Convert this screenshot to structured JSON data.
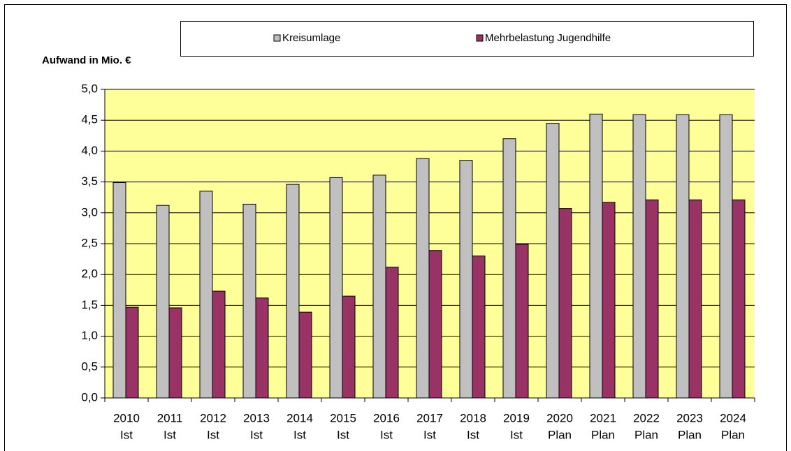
{
  "chart_data": {
    "type": "bar",
    "y_axis_label": "Aufwand in Mio. €",
    "categories": [
      [
        "2010",
        "Ist"
      ],
      [
        "2011",
        "Ist"
      ],
      [
        "2012",
        "Ist"
      ],
      [
        "2013",
        "Ist"
      ],
      [
        "2014",
        "Ist"
      ],
      [
        "2015",
        "Ist"
      ],
      [
        "2016",
        "Ist"
      ],
      [
        "2017",
        "Ist"
      ],
      [
        "2018",
        "Ist"
      ],
      [
        "2019",
        "Ist"
      ],
      [
        "2020",
        "Plan"
      ],
      [
        "2021",
        "Plan"
      ],
      [
        "2022",
        "Plan"
      ],
      [
        "2023",
        "Plan"
      ],
      [
        "2024",
        "Plan"
      ]
    ],
    "series": [
      {
        "name": "Kreisumlage",
        "color": "#c0c0c0",
        "values": [
          3.49,
          3.12,
          3.35,
          3.14,
          3.46,
          3.57,
          3.61,
          3.88,
          3.85,
          4.2,
          4.45,
          4.6,
          4.59,
          4.59,
          4.59
        ]
      },
      {
        "name": "Mehrbelastung Jugendhilfe",
        "color": "#993366",
        "values": [
          1.47,
          1.46,
          1.73,
          1.62,
          1.39,
          1.65,
          2.12,
          2.39,
          2.3,
          2.49,
          3.07,
          3.17,
          3.21,
          3.21,
          3.21
        ]
      }
    ],
    "ylim": [
      0,
      5
    ],
    "yticks": [
      {
        "value": 0,
        "label": "0,0"
      },
      {
        "value": 0.5,
        "label": "0,5"
      },
      {
        "value": 1,
        "label": "1,0"
      },
      {
        "value": 1.5,
        "label": "1,5"
      },
      {
        "value": 2,
        "label": "2,0"
      },
      {
        "value": 2.5,
        "label": "2,5"
      },
      {
        "value": 3,
        "label": "3,0"
      },
      {
        "value": 3.5,
        "label": "3,5"
      },
      {
        "value": 4,
        "label": "4,0"
      },
      {
        "value": 4.5,
        "label": "4,5"
      },
      {
        "value": 5,
        "label": "5,0"
      }
    ],
    "grid": true,
    "legend": "top",
    "plot_background": "#ffff99"
  }
}
